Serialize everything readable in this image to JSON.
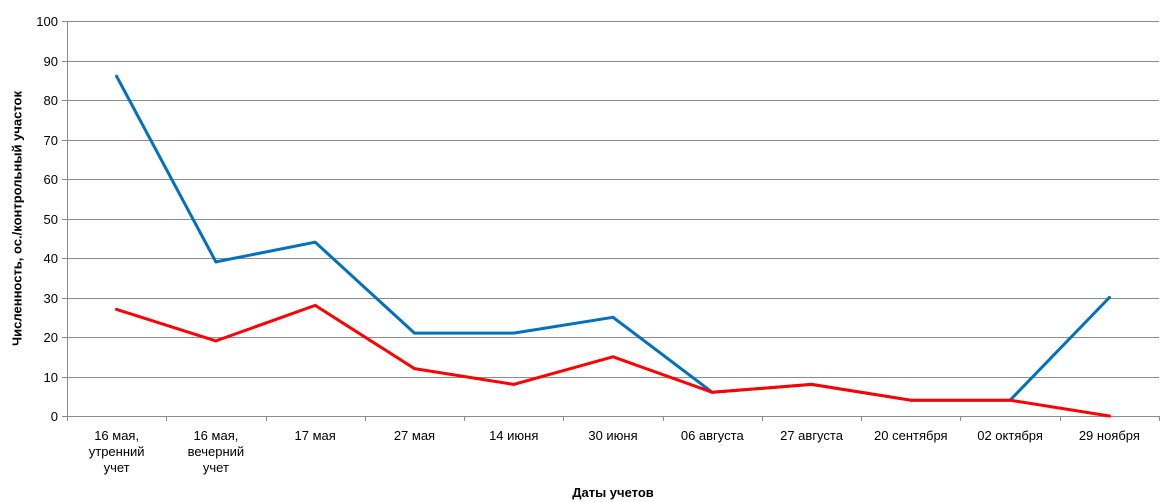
{
  "chart_data": {
    "type": "line",
    "title": "",
    "xlabel": "Даты учетов",
    "ylabel": "Численность, ос./контрольный участок",
    "ylim": [
      0,
      100
    ],
    "yticks": [
      0,
      10,
      20,
      30,
      40,
      50,
      60,
      70,
      80,
      90,
      100
    ],
    "grid": true,
    "legend": "none",
    "categories": [
      [
        "16 мая,",
        "утренний",
        "учет"
      ],
      [
        "16 мая,",
        "вечерний",
        "учет"
      ],
      [
        "17 мая"
      ],
      [
        "27 мая"
      ],
      [
        "14 июня"
      ],
      [
        "30 июня"
      ],
      [
        "06 августа"
      ],
      [
        "27 августа"
      ],
      [
        "20 сентября"
      ],
      [
        "02 октября"
      ],
      [
        "29 ноября"
      ]
    ],
    "series": [
      {
        "color": "#0070C0",
        "values": [
          86,
          39,
          44,
          21,
          21,
          25,
          6,
          8,
          4,
          4,
          30
        ]
      },
      {
        "color": "#FF0000",
        "values": [
          27,
          19,
          28,
          12,
          8,
          15,
          6,
          8,
          4,
          4,
          0
        ]
      }
    ]
  }
}
